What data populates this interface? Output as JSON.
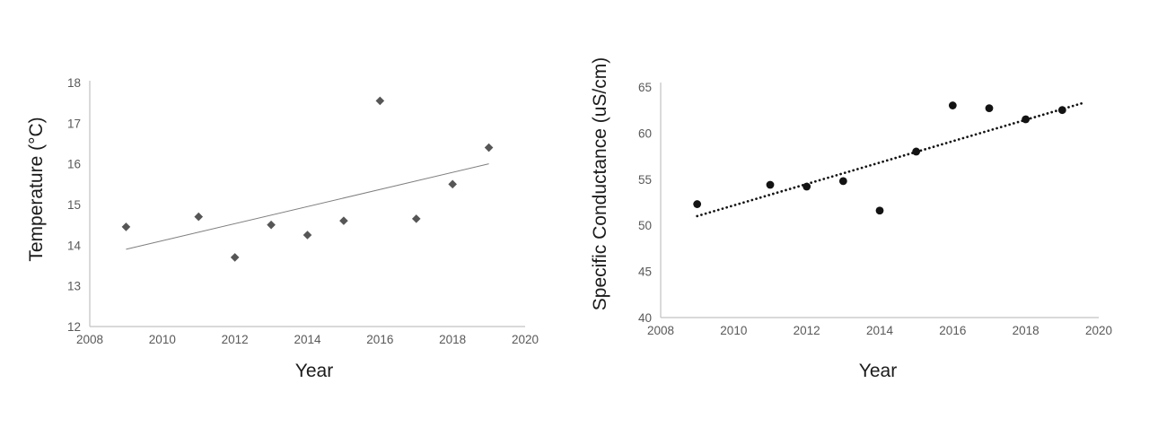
{
  "page": {
    "background": "#ffffff"
  },
  "colors": {
    "axis_line": "#c2c2c2",
    "tick_label": "#595959",
    "axis_title": "#1b1b1b"
  },
  "chart_data": [
    {
      "type": "scatter",
      "title": "",
      "xlabel": "Year",
      "ylabel": "Temperature (°C)",
      "x": [
        2009,
        2011,
        2012,
        2013,
        2014,
        2015,
        2016,
        2017,
        2018,
        2019
      ],
      "y": [
        14.45,
        14.7,
        13.7,
        14.5,
        14.25,
        14.6,
        17.55,
        14.65,
        15.5,
        16.4
      ],
      "xlim": [
        2008,
        2020
      ],
      "ylim": [
        12,
        18
      ],
      "xticks": [
        2008,
        2010,
        2012,
        2014,
        2016,
        2018,
        2020
      ],
      "yticks": [
        12,
        13,
        14,
        15,
        16,
        17,
        18
      ],
      "grid": false,
      "legend": null,
      "marker": {
        "shape": "diamond",
        "color": "#565656",
        "size": 9.6
      },
      "trendline": {
        "x1": 2009,
        "y1": 13.9,
        "x2": 2019,
        "y2": 16.0,
        "style": "solid",
        "color": "#7f7f7f",
        "width": 1
      }
    },
    {
      "type": "scatter",
      "title": "",
      "xlabel": "Year",
      "ylabel": "Specific Conductance (uS/cm)",
      "x": [
        2009,
        2011,
        2012,
        2013,
        2014,
        2015,
        2016,
        2017,
        2018,
        2019
      ],
      "y": [
        52.3,
        54.4,
        54.2,
        54.8,
        51.6,
        58.0,
        63.0,
        62.7,
        61.5,
        62.5
      ],
      "xlim": [
        2008,
        2020
      ],
      "ylim": [
        40,
        65
      ],
      "xticks": [
        2008,
        2010,
        2012,
        2014,
        2016,
        2018,
        2020
      ],
      "yticks": [
        40,
        45,
        50,
        55,
        60,
        65
      ],
      "grid": false,
      "legend": null,
      "marker": {
        "shape": "circle",
        "color": "#131313",
        "size": 8.8
      },
      "trendline": {
        "x1": 2009,
        "y1": 51.0,
        "x2": 2019.6,
        "y2": 63.3,
        "style": "dotted",
        "color": "#131313",
        "width": 2.7
      }
    }
  ]
}
